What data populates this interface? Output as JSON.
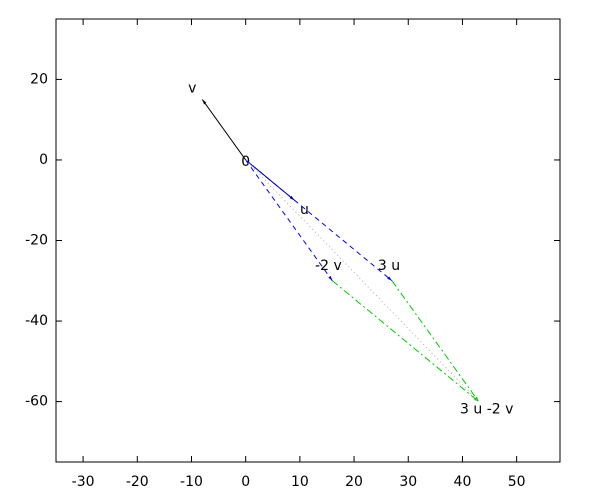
{
  "chart_data": {
    "type": "vector",
    "xlim": [
      -35,
      58
    ],
    "ylim": [
      -75,
      35
    ],
    "xticks": [
      -30,
      -20,
      -10,
      0,
      10,
      20,
      30,
      40,
      50
    ],
    "yticks": [
      -60,
      -40,
      -20,
      0,
      20
    ],
    "origin_label": "0",
    "vectors": [
      {
        "name": "v",
        "from": [
          0,
          0
        ],
        "to": [
          -8,
          15
        ],
        "color": "#000000",
        "style": "solid"
      },
      {
        "name": "u",
        "from": [
          0,
          0
        ],
        "to": [
          9,
          -10
        ],
        "color": "#000080",
        "style": "solid"
      },
      {
        "name": "3 u",
        "from": [
          0,
          0
        ],
        "to": [
          27,
          -30
        ],
        "color": "#0000ff",
        "style": "dashed"
      },
      {
        "name": "-2 v",
        "from": [
          0,
          0
        ],
        "to": [
          16,
          -30
        ],
        "color": "#0000ff",
        "style": "dashed"
      },
      {
        "name": "3 u -2 v",
        "from": [
          27,
          -30
        ],
        "to": [
          43,
          -60
        ],
        "color": "#00cc00",
        "style": "dashdot"
      },
      {
        "from": [
          16,
          -30
        ],
        "to": [
          43,
          -60
        ],
        "color": "#00cc00",
        "style": "dashdot"
      },
      {
        "from": [
          0,
          0
        ],
        "to": [
          43,
          -60
        ],
        "color": "#aaaaaa",
        "style": "dotted"
      }
    ]
  }
}
